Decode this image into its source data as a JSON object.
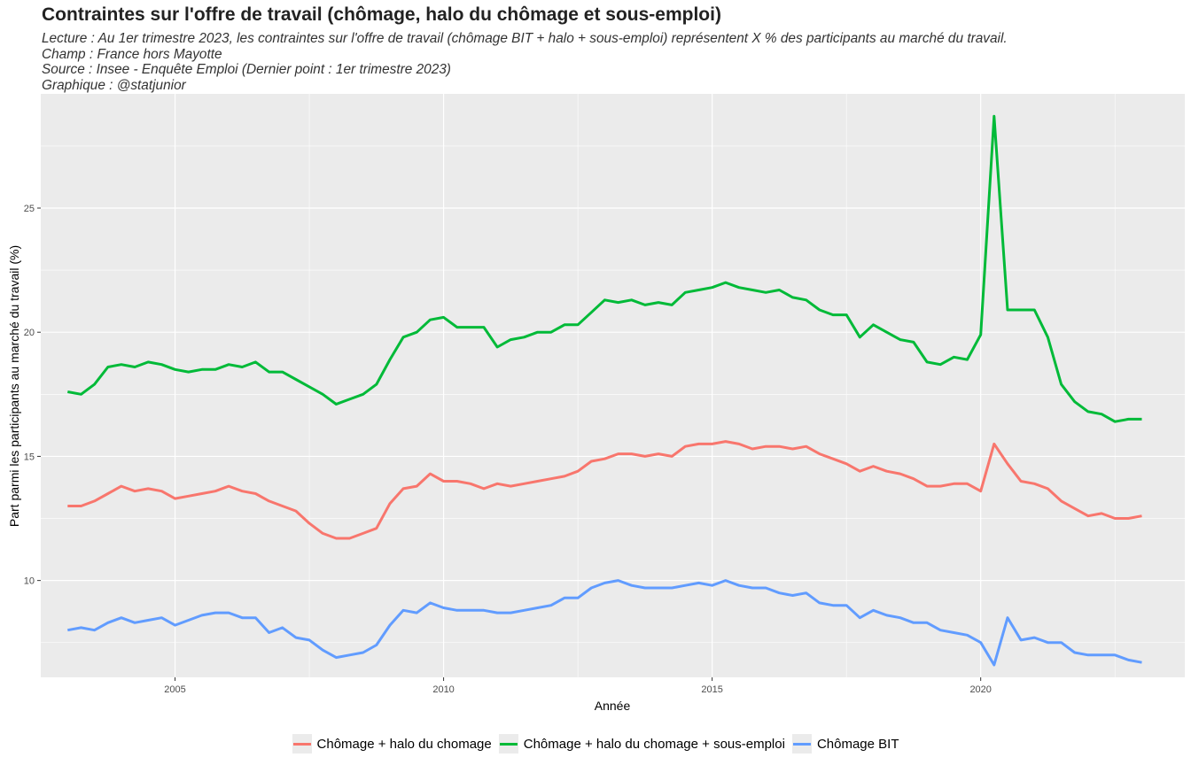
{
  "chart_data": {
    "type": "line",
    "title": "Contraintes sur l'offre de travail (chômage, halo du chômage et sous-emploi)",
    "subtitle_lines": [
      "Lecture : Au 1er trimestre 2023, les contraintes sur l'offre de travail (chômage BIT + halo + sous-emploi) représentent X % des participants au marché du travail.",
      "Champ : France hors Mayotte",
      "Source : Insee - Enquête Emploi (Dernier point : 1er trimestre 2023)",
      "Graphique : @statjunior"
    ],
    "xlabel": "Année",
    "ylabel": "Part parmi les participants au marché du travail (%)",
    "xlim": [
      2002.5,
      2023.8
    ],
    "ylim": [
      6.1,
      29.6
    ],
    "x_ticks": [
      2005,
      2010,
      2015,
      2020
    ],
    "y_ticks": [
      10,
      15,
      20,
      25
    ],
    "grid": true,
    "legend_position": "bottom",
    "x": [
      2003.0,
      2003.25,
      2003.5,
      2003.75,
      2004.0,
      2004.25,
      2004.5,
      2004.75,
      2005.0,
      2005.25,
      2005.5,
      2005.75,
      2006.0,
      2006.25,
      2006.5,
      2006.75,
      2007.0,
      2007.25,
      2007.5,
      2007.75,
      2008.0,
      2008.25,
      2008.5,
      2008.75,
      2009.0,
      2009.25,
      2009.5,
      2009.75,
      2010.0,
      2010.25,
      2010.5,
      2010.75,
      2011.0,
      2011.25,
      2011.5,
      2011.75,
      2012.0,
      2012.25,
      2012.5,
      2012.75,
      2013.0,
      2013.25,
      2013.5,
      2013.75,
      2014.0,
      2014.25,
      2014.5,
      2014.75,
      2015.0,
      2015.25,
      2015.5,
      2015.75,
      2016.0,
      2016.25,
      2016.5,
      2016.75,
      2017.0,
      2017.25,
      2017.5,
      2017.75,
      2018.0,
      2018.25,
      2018.5,
      2018.75,
      2019.0,
      2019.25,
      2019.5,
      2019.75,
      2020.0,
      2020.25,
      2020.5,
      2020.75,
      2021.0,
      2021.25,
      2021.5,
      2021.75,
      2022.0,
      2022.25,
      2022.5,
      2022.75,
      2023.0
    ],
    "series": [
      {
        "name": "Chômage + halo du chomage",
        "color": "#F8766D",
        "values": [
          13.0,
          13.0,
          13.2,
          13.5,
          13.8,
          13.6,
          13.7,
          13.6,
          13.3,
          13.4,
          13.5,
          13.6,
          13.8,
          13.6,
          13.5,
          13.2,
          13.0,
          12.8,
          12.3,
          11.9,
          11.7,
          11.7,
          11.9,
          12.1,
          13.1,
          13.7,
          13.8,
          14.3,
          14.0,
          14.0,
          13.9,
          13.7,
          13.9,
          13.8,
          13.9,
          14.0,
          14.1,
          14.2,
          14.4,
          14.8,
          14.9,
          15.1,
          15.1,
          15.0,
          15.1,
          15.0,
          15.4,
          15.5,
          15.5,
          15.6,
          15.5,
          15.3,
          15.4,
          15.4,
          15.3,
          15.4,
          15.1,
          14.9,
          14.7,
          14.4,
          14.6,
          14.4,
          14.3,
          14.1,
          13.8,
          13.8,
          13.9,
          13.9,
          13.6,
          15.5,
          14.7,
          14.0,
          13.9,
          13.7,
          13.2,
          12.9,
          12.6,
          12.7,
          12.5,
          12.5,
          12.6
        ]
      },
      {
        "name": "Chômage + halo du chomage + sous-emploi",
        "color": "#00BA38",
        "values": [
          17.6,
          17.5,
          17.9,
          18.6,
          18.7,
          18.6,
          18.8,
          18.7,
          18.5,
          18.4,
          18.5,
          18.5,
          18.7,
          18.6,
          18.8,
          18.4,
          18.4,
          18.1,
          17.8,
          17.5,
          17.1,
          17.3,
          17.5,
          17.9,
          18.9,
          19.8,
          20.0,
          20.5,
          20.6,
          20.2,
          20.2,
          20.2,
          19.4,
          19.7,
          19.8,
          20.0,
          20.0,
          20.3,
          20.3,
          20.8,
          21.3,
          21.2,
          21.3,
          21.1,
          21.2,
          21.1,
          21.6,
          21.7,
          21.8,
          22.0,
          21.8,
          21.7,
          21.6,
          21.7,
          21.4,
          21.3,
          20.9,
          20.7,
          20.7,
          19.8,
          20.3,
          20.0,
          19.7,
          19.6,
          18.8,
          18.7,
          19.0,
          18.9,
          19.9,
          28.7,
          20.9,
          20.9,
          20.9,
          19.8,
          17.9,
          17.2,
          16.8,
          16.7,
          16.4,
          16.5,
          16.5
        ]
      },
      {
        "name": "Chômage BIT",
        "color": "#619CFF",
        "values": [
          8.0,
          8.1,
          8.0,
          8.3,
          8.5,
          8.3,
          8.4,
          8.5,
          8.2,
          8.4,
          8.6,
          8.7,
          8.7,
          8.5,
          8.5,
          7.9,
          8.1,
          7.7,
          7.6,
          7.2,
          6.9,
          7.0,
          7.1,
          7.4,
          8.2,
          8.8,
          8.7,
          9.1,
          8.9,
          8.8,
          8.8,
          8.8,
          8.7,
          8.7,
          8.8,
          8.9,
          9.0,
          9.3,
          9.3,
          9.7,
          9.9,
          10.0,
          9.8,
          9.7,
          9.7,
          9.7,
          9.8,
          9.9,
          9.8,
          10.0,
          9.8,
          9.7,
          9.7,
          9.5,
          9.4,
          9.5,
          9.1,
          9.0,
          9.0,
          8.5,
          8.8,
          8.6,
          8.5,
          8.3,
          8.3,
          8.0,
          7.9,
          7.8,
          7.5,
          6.6,
          8.5,
          7.6,
          7.7,
          7.5,
          7.5,
          7.1,
          7.0,
          7.0,
          7.0,
          6.8,
          6.7
        ]
      }
    ]
  }
}
